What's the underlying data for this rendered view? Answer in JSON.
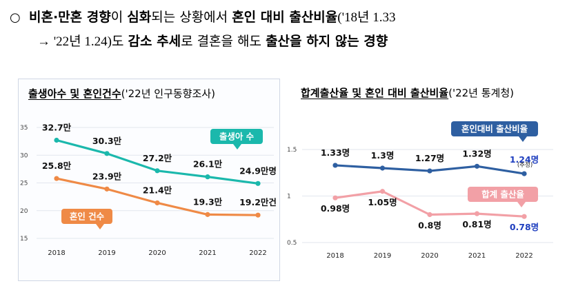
{
  "intro": {
    "bullet": "○",
    "line1": [
      {
        "t": "비혼·만혼 경향",
        "b": true
      },
      {
        "t": "이 ",
        "b": false
      },
      {
        "t": "심화",
        "b": true
      },
      {
        "t": "되는 상황에서 ",
        "b": false
      },
      {
        "t": "혼인 대비 출산비율",
        "b": true
      },
      {
        "t": "('18년 1.33",
        "b": false,
        "serif": true
      }
    ],
    "line2": [
      {
        "t": "→ '22년 1.24)",
        "b": false,
        "serif": true
      },
      {
        "t": "도 ",
        "b": false
      },
      {
        "t": "감소 추세",
        "b": true
      },
      {
        "t": "로 결혼을 해도 ",
        "b": false
      },
      {
        "t": "출산을 하지 않는 경향",
        "b": true
      }
    ]
  },
  "chart_data": [
    {
      "type": "line",
      "title": "출생아수 및 혼인건수",
      "source": "('22년 인구동향조사)",
      "x": [
        "2018",
        "2019",
        "2020",
        "2021",
        "2022"
      ],
      "ylim": [
        15,
        35
      ],
      "yticks": [
        "15",
        "20",
        "25",
        "30",
        "35"
      ],
      "grid": true,
      "series": [
        {
          "name": "출생아 수",
          "color": "#1bb8ac",
          "values": [
            32.7,
            30.3,
            27.2,
            26.1,
            24.9
          ],
          "labels": [
            "32.7만",
            "30.3만",
            "27.2만",
            "26.1만",
            "24.9만명"
          ]
        },
        {
          "name": "혼인 건수",
          "color": "#ef8a46",
          "values": [
            25.8,
            23.9,
            21.4,
            19.3,
            19.2
          ],
          "labels": [
            "25.8만",
            "23.9만",
            "21.4만",
            "19.3만",
            "19.2만건"
          ]
        }
      ]
    },
    {
      "type": "line",
      "title": "합계출산율 및 혼인 대비 출산비율",
      "source": "('22년 통계청)",
      "x": [
        "2018",
        "2019",
        "2020",
        "2021",
        "2022"
      ],
      "ylim": [
        0.5,
        1.5
      ],
      "yticks": [
        "0.5",
        "1",
        "1.5"
      ],
      "grid": true,
      "series": [
        {
          "name": "혼인대비 출산비율",
          "color": "#2e5fa1",
          "values": [
            1.33,
            1.3,
            1.27,
            1.32,
            1.24
          ],
          "labels": [
            "1.33명",
            "1.3명",
            "1.27명",
            "1.32명",
            "1.24명"
          ],
          "note": "(추정)"
        },
        {
          "name": "합계 출산율",
          "color": "#f2a0a6",
          "values": [
            0.98,
            1.05,
            0.8,
            0.81,
            0.78
          ],
          "labels": [
            "0.98명",
            "1.05명",
            "0.8명",
            "0.81명",
            "0.78명"
          ]
        }
      ]
    }
  ],
  "highlight_color": "#1f3fbf"
}
